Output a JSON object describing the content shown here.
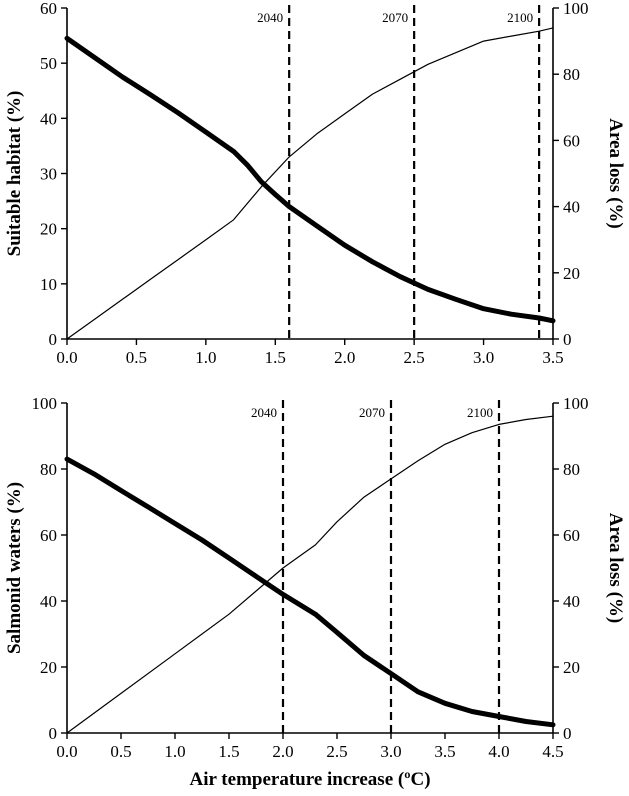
{
  "chart_data": [
    {
      "type": "line",
      "panel": "top",
      "xlim": [
        0,
        3.5
      ],
      "x_ticks": [
        "0.0",
        "0.5",
        "1.0",
        "1.5",
        "2.0",
        "2.5",
        "3.0",
        "3.5"
      ],
      "ylabel": "Suitable habitat (%)",
      "ylim": [
        0,
        60
      ],
      "y_ticks": [
        "0",
        "10",
        "20",
        "30",
        "40",
        "50",
        "60"
      ],
      "y2label": "Area loss (%)",
      "y2lim": [
        0,
        100
      ],
      "y2_ticks": [
        "0",
        "20",
        "40",
        "60",
        "80",
        "100"
      ],
      "vlines": [
        {
          "x": 1.6,
          "label": "2040"
        },
        {
          "x": 2.5,
          "label": "2070"
        },
        {
          "x": 3.4,
          "label": "2100"
        }
      ],
      "series": [
        {
          "axis": "left",
          "style": "thick",
          "x": [
            0,
            0.2,
            0.4,
            0.6,
            0.8,
            1.0,
            1.2,
            1.3,
            1.4,
            1.5,
            1.6,
            1.8,
            2.0,
            2.2,
            2.4,
            2.6,
            2.8,
            3.0,
            3.2,
            3.4,
            3.5
          ],
          "y": [
            54.5,
            51,
            47.5,
            44.3,
            41,
            37.5,
            34,
            31.5,
            28.5,
            26.2,
            24,
            20.5,
            17,
            14,
            11.3,
            9,
            7.2,
            5.5,
            4.5,
            3.8,
            3.3
          ]
        },
        {
          "axis": "right",
          "style": "thin",
          "x": [
            0,
            0.2,
            0.4,
            0.6,
            0.8,
            1.0,
            1.2,
            1.4,
            1.6,
            1.8,
            2.0,
            2.2,
            2.4,
            2.6,
            2.8,
            3.0,
            3.2,
            3.4,
            3.5
          ],
          "y": [
            0,
            6,
            12,
            18,
            24,
            30,
            36,
            46,
            55,
            62,
            68,
            74,
            78.5,
            83,
            86.5,
            90,
            91.5,
            93,
            94
          ]
        }
      ]
    },
    {
      "type": "line",
      "panel": "bottom",
      "xlabel": "Air temperature increase (ºC)",
      "xlim": [
        0,
        4.5
      ],
      "x_ticks": [
        "0.0",
        "0.5",
        "1.0",
        "1.5",
        "2.0",
        "2.5",
        "3.0",
        "3.5",
        "4.0",
        "4.5"
      ],
      "ylabel": "Salmonid waters (%)",
      "ylim": [
        0,
        100
      ],
      "y_ticks": [
        "0",
        "20",
        "40",
        "60",
        "80",
        "100"
      ],
      "y2label": "Area loss (%)",
      "y2lim": [
        0,
        100
      ],
      "y2_ticks": [
        "0",
        "20",
        "40",
        "60",
        "80",
        "100"
      ],
      "vlines": [
        {
          "x": 2.0,
          "label": "2040"
        },
        {
          "x": 3.0,
          "label": "2070"
        },
        {
          "x": 4.0,
          "label": "2100"
        }
      ],
      "series": [
        {
          "axis": "left",
          "style": "thick",
          "x": [
            0,
            0.25,
            0.5,
            0.75,
            1.0,
            1.25,
            1.5,
            1.75,
            2.0,
            2.3,
            2.5,
            2.75,
            3.0,
            3.25,
            3.5,
            3.75,
            4.0,
            4.25,
            4.5
          ],
          "y": [
            83,
            78.5,
            73.5,
            68.5,
            63.5,
            58.5,
            53,
            47.5,
            42,
            36,
            30.5,
            23.5,
            18,
            12.5,
            9,
            6.5,
            5,
            3.5,
            2.5
          ]
        },
        {
          "axis": "right",
          "style": "thin",
          "x": [
            0,
            0.5,
            1.0,
            1.5,
            2.0,
            2.3,
            2.5,
            2.75,
            3.0,
            3.25,
            3.5,
            3.75,
            4.0,
            4.25,
            4.5
          ],
          "y": [
            0,
            12,
            24,
            36,
            50,
            57,
            64,
            71.5,
            77,
            82.5,
            87.5,
            91,
            93.5,
            95,
            96
          ]
        }
      ]
    }
  ]
}
